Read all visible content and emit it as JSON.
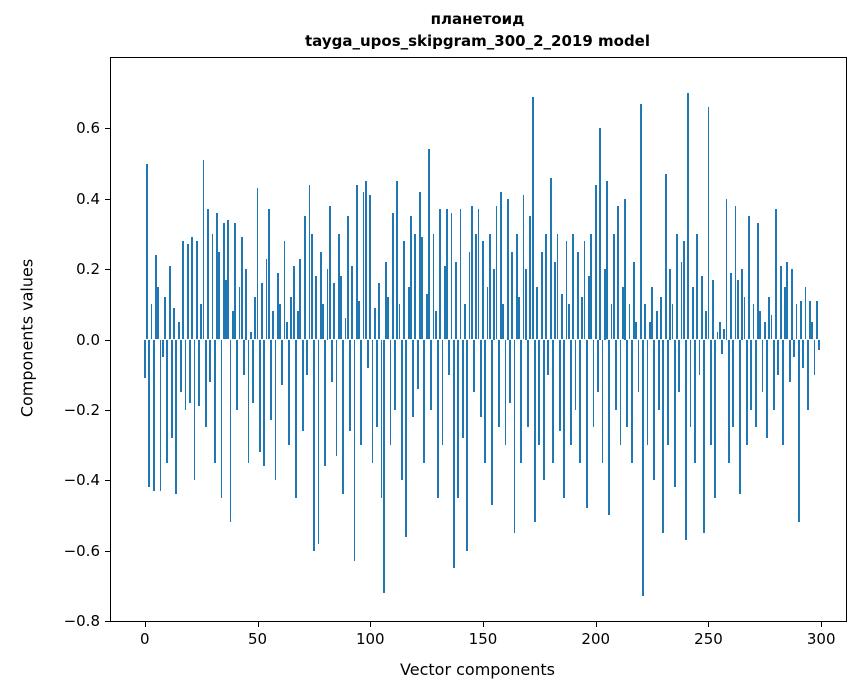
{
  "figure": {
    "title_line1": "планетоид",
    "title_line2": "tayga_upos_skipgram_300_2_2019 model"
  },
  "chart_data": {
    "type": "bar",
    "title": "планетоид",
    "subtitle": "tayga_upos_skipgram_300_2_2019 model",
    "xlabel": "Vector components",
    "ylabel": "Components values",
    "xlim": [
      -15,
      311
    ],
    "ylim": [
      -0.8,
      0.8
    ],
    "grid": false,
    "legend": "none",
    "bar_color": "#1f77b4",
    "xticks": {
      "values": [
        0,
        50,
        100,
        150,
        200,
        250,
        300
      ],
      "labels": [
        "0",
        "50",
        "100",
        "150",
        "200",
        "250",
        "300"
      ]
    },
    "yticks": {
      "values": [
        -0.8,
        -0.6,
        -0.4,
        -0.2,
        0.0,
        0.2,
        0.4,
        0.6
      ],
      "labels": [
        "−0.8",
        "−0.6",
        "−0.4",
        "−0.2",
        "0.0",
        "0.2",
        "0.4",
        "0.6"
      ]
    },
    "x_description": "vector component index 0..299",
    "values": [
      -0.11,
      0.5,
      -0.42,
      0.1,
      -0.43,
      0.24,
      0.15,
      -0.43,
      -0.05,
      0.12,
      -0.35,
      0.21,
      -0.28,
      0.09,
      -0.44,
      0.05,
      -0.15,
      0.28,
      -0.2,
      0.27,
      -0.18,
      0.29,
      -0.4,
      0.28,
      -0.19,
      0.1,
      0.51,
      -0.25,
      0.37,
      -0.12,
      0.3,
      -0.35,
      0.36,
      0.25,
      -0.45,
      0.33,
      0.17,
      0.34,
      -0.52,
      0.08,
      0.33,
      -0.2,
      0.15,
      0.29,
      -0.1,
      0.2,
      -0.35,
      0.02,
      -0.18,
      0.12,
      0.43,
      -0.32,
      0.16,
      -0.36,
      0.23,
      0.37,
      -0.23,
      0.08,
      -0.4,
      0.19,
      0.1,
      -0.13,
      0.28,
      0.05,
      -0.3,
      0.12,
      0.21,
      -0.45,
      0.08,
      0.23,
      -0.26,
      0.35,
      -0.1,
      0.44,
      0.3,
      -0.6,
      0.18,
      -0.58,
      0.25,
      0.1,
      -0.36,
      0.2,
      0.38,
      -0.12,
      0.16,
      -0.33,
      0.3,
      0.18,
      -0.44,
      0.06,
      0.35,
      -0.26,
      0.21,
      -0.63,
      0.44,
      0.11,
      -0.3,
      0.42,
      0.45,
      -0.08,
      0.41,
      -0.35,
      0.09,
      -0.25,
      0.16,
      -0.45,
      -0.72,
      0.22,
      0.12,
      -0.3,
      0.36,
      -0.2,
      0.45,
      0.1,
      -0.4,
      0.28,
      -0.56,
      0.15,
      0.35,
      -0.22,
      0.3,
      -0.14,
      0.42,
      0.29,
      -0.35,
      0.13,
      0.54,
      -0.2,
      0.3,
      0.08,
      -0.45,
      0.37,
      -0.3,
      0.21,
      0.37,
      -0.1,
      0.36,
      -0.65,
      0.22,
      -0.45,
      0.37,
      -0.28,
      0.1,
      -0.6,
      0.25,
      0.38,
      -0.15,
      0.3,
      0.37,
      -0.22,
      0.28,
      -0.35,
      0.15,
      0.3,
      -0.47,
      0.2,
      0.38,
      -0.25,
      0.42,
      0.1,
      -0.3,
      0.4,
      -0.18,
      0.25,
      -0.55,
      0.3,
      0.12,
      -0.35,
      0.41,
      0.2,
      -0.25,
      0.35,
      0.69,
      -0.52,
      0.15,
      -0.3,
      0.25,
      -0.4,
      0.3,
      -0.1,
      0.46,
      -0.35,
      0.22,
      0.3,
      -0.26,
      0.13,
      -0.45,
      0.28,
      0.1,
      -0.3,
      0.3,
      -0.2,
      0.25,
      -0.35,
      0.12,
      0.28,
      -0.48,
      0.18,
      0.3,
      -0.25,
      0.44,
      -0.15,
      0.6,
      -0.35,
      0.2,
      0.45,
      -0.5,
      0.1,
      0.3,
      -0.2,
      0.38,
      -0.3,
      0.15,
      0.4,
      -0.25,
      0.1,
      -0.35,
      0.22,
      0.05,
      -0.15,
      0.67,
      -0.73,
      0.1,
      -0.3,
      0.05,
      0.15,
      -0.4,
      0.08,
      -0.2,
      0.12,
      -0.55,
      0.47,
      -0.3,
      0.2,
      0.1,
      -0.42,
      0.3,
      -0.15,
      0.22,
      0.28,
      -0.57,
      0.7,
      -0.25,
      0.15,
      -0.35,
      0.3,
      -0.1,
      0.18,
      -0.55,
      0.08,
      0.66,
      -0.3,
      0.17,
      -0.45,
      0.02,
      0.05,
      -0.04,
      0.03,
      0.4,
      -0.35,
      0.19,
      -0.25,
      0.38,
      0.17,
      -0.44,
      0.2,
      0.12,
      -0.3,
      0.35,
      -0.2,
      0.1,
      -0.25,
      0.33,
      0.08,
      -0.15,
      0.05,
      -0.28,
      0.12,
      0.07,
      -0.2,
      0.37,
      -0.1,
      0.21,
      -0.3,
      0.15,
      0.22,
      -0.12,
      0.2,
      -0.05,
      0.1,
      -0.52,
      0.11,
      -0.08,
      0.15,
      -0.2,
      0.11,
      0.05,
      -0.1,
      0.11,
      -0.03
    ]
  }
}
